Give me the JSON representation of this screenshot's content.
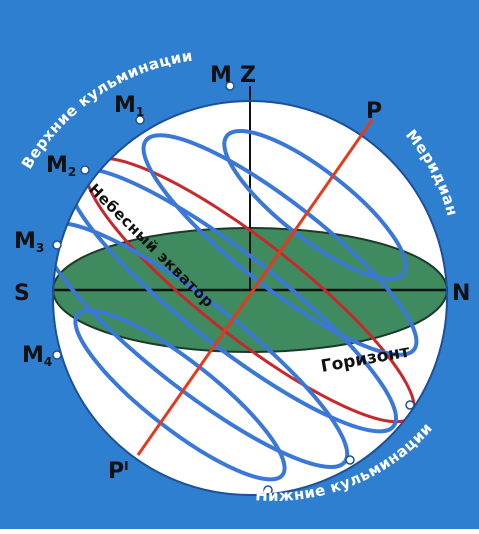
{
  "colors": {
    "background": "#2f7fd1",
    "sphere": "#ffffff",
    "horizon_fill": "#3f8a5e",
    "circle_stroke": "#3a78d8",
    "axis_red": "#e23b1f",
    "equator_red": "#c8282b",
    "label_white": "#ffffff",
    "label_dark": "#111111"
  },
  "labels": {
    "zenith": "Z",
    "meridian_point": "M",
    "pole_north": "P",
    "pole_south": "P",
    "pole_south_mark": "I",
    "south": "S",
    "north": "N",
    "m1": "M",
    "m1_sub": "1",
    "m2": "M",
    "m2_sub": "2",
    "m3": "M",
    "m3_sub": "3",
    "m4": "M",
    "m4_sub": "4",
    "upper_culminations": "Верхние кульминации",
    "lower_culminations": "Нижние кульминации",
    "meridian": "Меридиан",
    "celestial_equator": "Небесный экватор",
    "horizon": "Горизонт"
  }
}
